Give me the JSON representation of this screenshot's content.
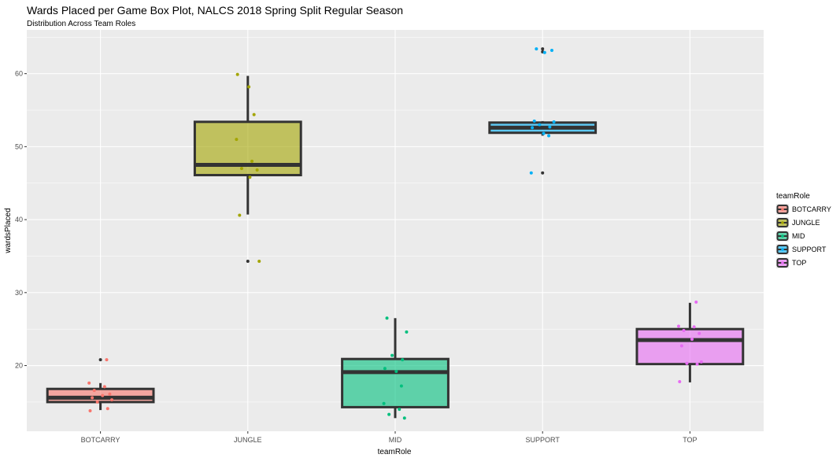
{
  "chart_data": {
    "type": "box",
    "title": "Wards Placed per Game Box Plot, NALCS 2018 Spring Split Regular Season",
    "subtitle": "Distribution Across Team Roles",
    "xlabel": "teamRole",
    "ylabel": "wardsPlaced",
    "ylim": [
      11,
      66
    ],
    "yticks": [
      20,
      30,
      40,
      50,
      60
    ],
    "grid": true,
    "legend": {
      "title": "teamRole",
      "position": "right"
    },
    "categories": [
      "BOTCARRY",
      "JUNGLE",
      "MID",
      "SUPPORT",
      "TOP"
    ],
    "colors": [
      "#F8766D",
      "#A3A500",
      "#00BF7D",
      "#00B0F6",
      "#E76BF3"
    ],
    "series": [
      {
        "name": "BOTCARRY",
        "box": {
          "lower_whisker": 13.9,
          "q1": 15.0,
          "median": 15.6,
          "q3": 16.8,
          "upper_whisker": 17.6
        },
        "outliers": [
          20.8
        ],
        "points": [
          13.8,
          14.1,
          15.0,
          15.3,
          15.6,
          15.9,
          16.1,
          16.6,
          17.1,
          17.6,
          20.8
        ]
      },
      {
        "name": "JUNGLE",
        "box": {
          "lower_whisker": 40.7,
          "q1": 46.1,
          "median": 47.5,
          "q3": 53.4,
          "upper_whisker": 59.7
        },
        "outliers": [
          34.3
        ],
        "points": [
          34.3,
          40.6,
          45.8,
          46.8,
          47.0,
          48.0,
          51.0,
          54.4,
          58.2,
          59.9
        ]
      },
      {
        "name": "MID",
        "box": {
          "lower_whisker": 12.8,
          "q1": 14.3,
          "median": 19.1,
          "q3": 20.9,
          "upper_whisker": 26.5
        },
        "outliers": [],
        "points": [
          12.8,
          13.3,
          14.0,
          14.8,
          17.2,
          19.2,
          19.6,
          20.8,
          21.4,
          24.6,
          26.5
        ]
      },
      {
        "name": "SUPPORT",
        "box": {
          "lower_whisker": 51.5,
          "q1": 51.9,
          "median": 52.6,
          "q3": 53.3,
          "upper_whisker": 53.5
        },
        "outliers": [
          46.4,
          63.0,
          63.4
        ],
        "points": [
          46.4,
          51.5,
          51.8,
          52.6,
          52.7,
          53.0,
          53.4,
          53.5,
          62.9,
          63.2,
          63.4
        ]
      },
      {
        "name": "TOP",
        "box": {
          "lower_whisker": 17.7,
          "q1": 20.2,
          "median": 23.5,
          "q3": 25.0,
          "upper_whisker": 28.6
        },
        "outliers": [],
        "points": [
          17.8,
          20.2,
          20.3,
          20.5,
          22.7,
          23.6,
          24.4,
          24.8,
          25.3,
          25.4,
          28.7
        ]
      }
    ]
  }
}
